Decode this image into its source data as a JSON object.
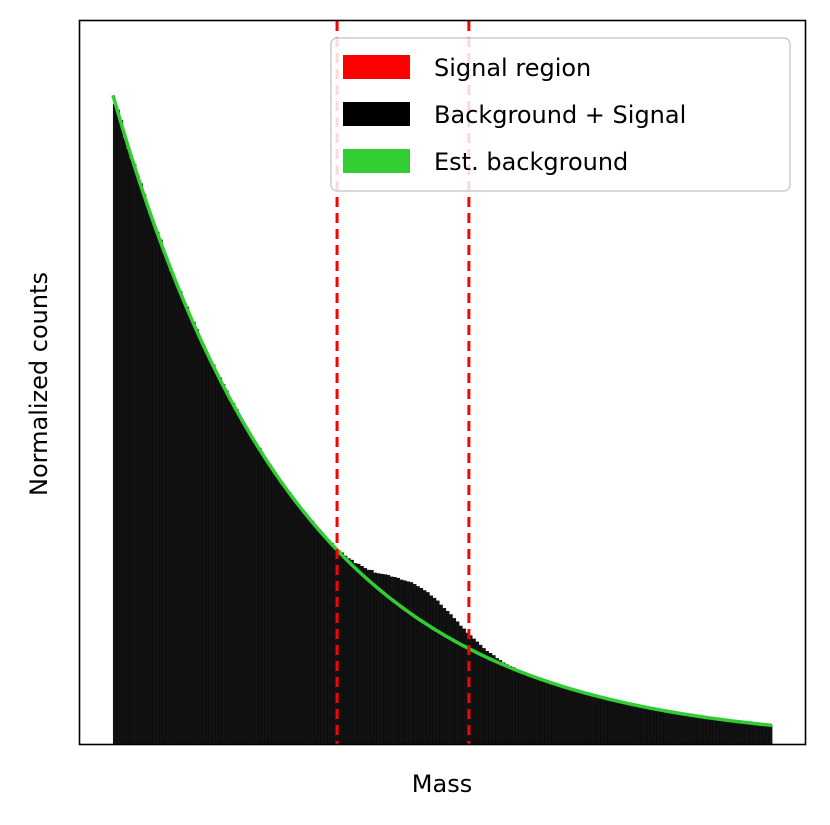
{
  "chart_data": {
    "type": "bar",
    "title": "",
    "xlabel": "Mass",
    "ylabel": "Normalized counts",
    "xticks_visible": false,
    "yticks_visible": false,
    "grid": false,
    "legend_position": "top-right",
    "xlim": [
      0,
      1.1
    ],
    "ylim": [
      0,
      1.1
    ],
    "colors": {
      "bars": "#000000",
      "background_fit": "#32cd32",
      "signal_region": "#ff0000",
      "frame": "#000000"
    },
    "legend": [
      {
        "label": "Signal region",
        "color": "#ff0000"
      },
      {
        "label": "Background + Signal",
        "color": "#000000"
      },
      {
        "label": "Est. background",
        "color": "#32cd32"
      }
    ],
    "histogram": {
      "x_start": 0.05,
      "x_end": 1.05,
      "n_bins": 200,
      "background_model": {
        "form": "A*exp(-k*(x-x0))+C",
        "A": 0.987,
        "k": 3.55,
        "x0": 0.05,
        "C": 0.0
      },
      "signal_bump": {
        "center": 0.52,
        "amplitude": 0.05,
        "width": 0.055
      }
    },
    "signal_region": [
      0.39,
      0.59
    ],
    "series": [
      {
        "name": "Background + Signal",
        "kind": "histogram"
      },
      {
        "name": "Est. background",
        "kind": "line"
      }
    ]
  }
}
